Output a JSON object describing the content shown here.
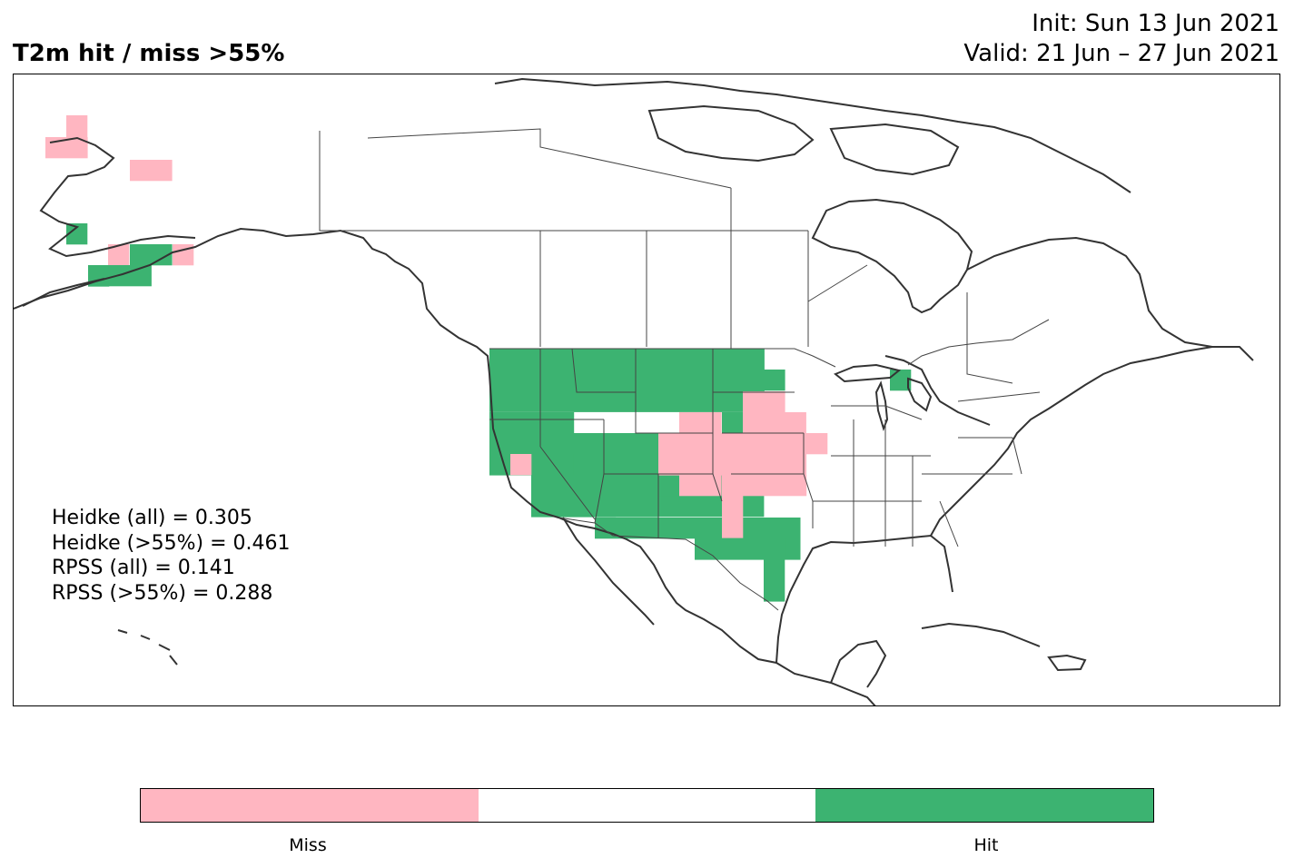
{
  "title": "T2m hit / miss  >55%",
  "init_line": "Init: Sun 13 Jun 2021",
  "valid_line": "Valid: 21 Jun – 27 Jun 2021",
  "stats": [
    "Heidke (all) = 0.305",
    "Heidke (>55%) = 0.461",
    "RPSS (all) = 0.141",
    "RPSS (>55%) = 0.288"
  ],
  "colors": {
    "miss": "#ffb6c1",
    "hit": "#3cb371",
    "neutral": "#ffffff",
    "coast": "#333333"
  },
  "colorbar": {
    "segments": [
      "miss",
      "neutral",
      "hit"
    ],
    "labels": [
      "Miss",
      "Hit"
    ]
  }
}
